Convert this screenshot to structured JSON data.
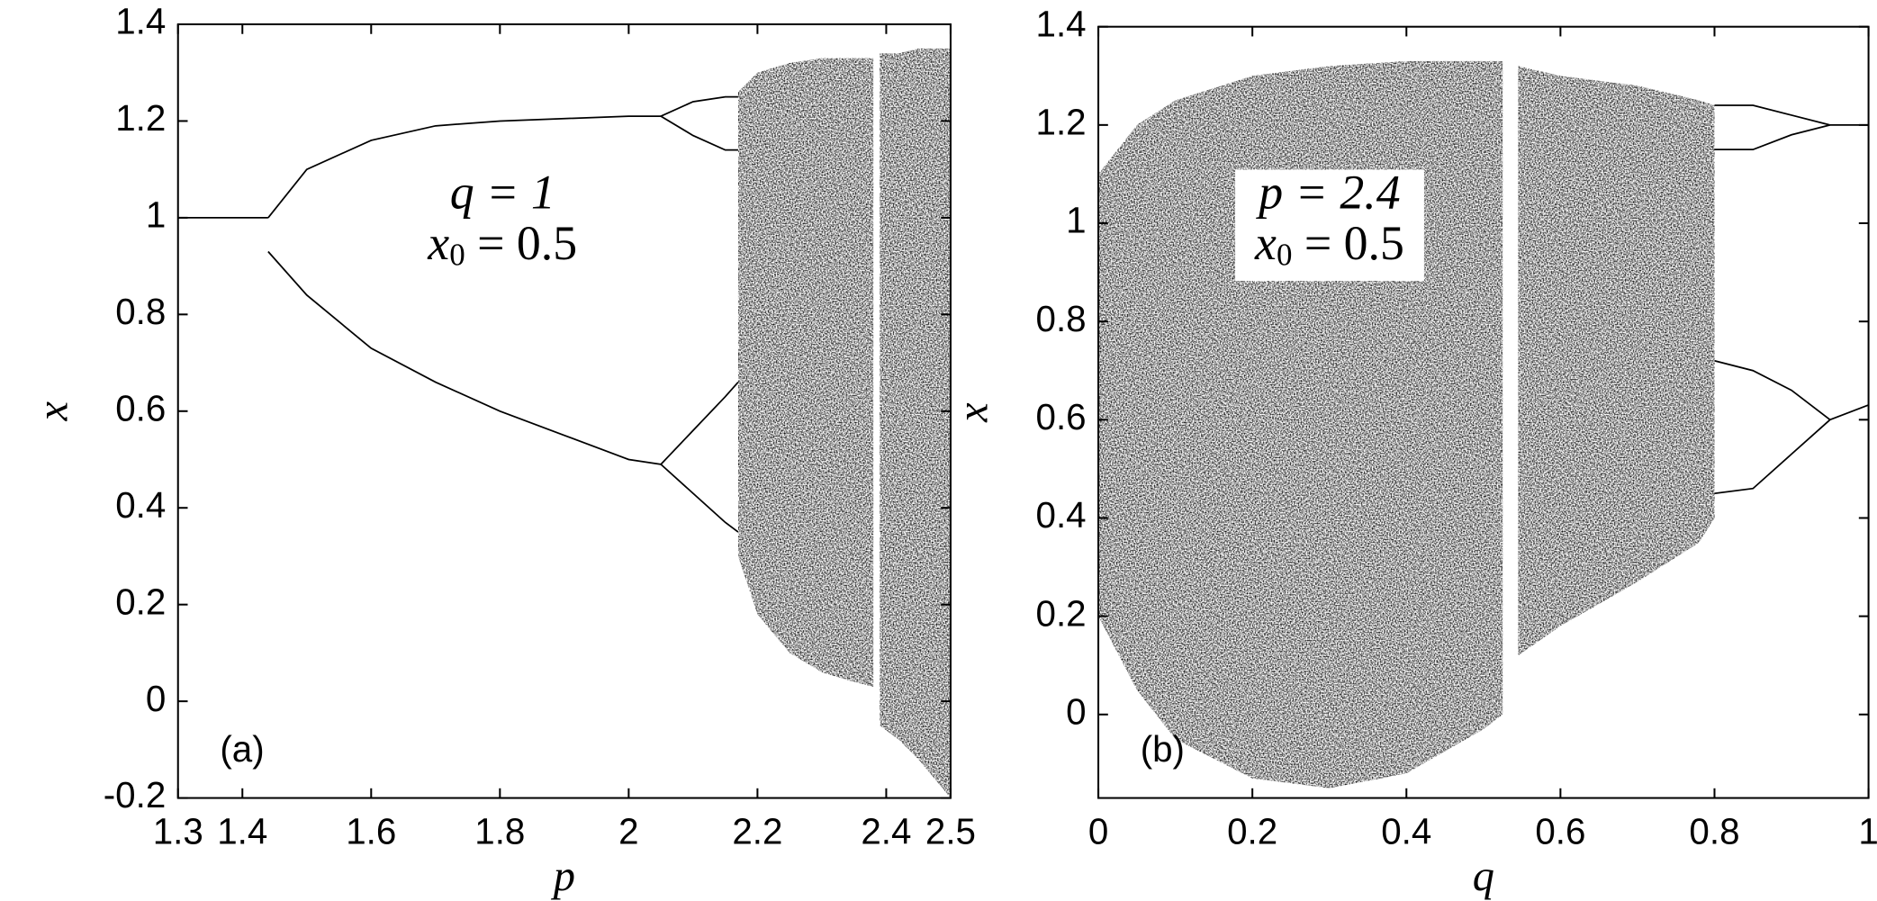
{
  "chart_data": [
    {
      "type": "bifurcation",
      "xlabel": "p",
      "ylabel": "x",
      "panel_label": "(a)",
      "color": "#000000",
      "annotation": [
        {
          "main": "q = 1"
        },
        {
          "main": "x",
          "sub": "0",
          "rest": " = 0.5"
        }
      ],
      "annotation_box": false,
      "xlim": [
        1.3,
        2.5
      ],
      "ylim": [
        -0.2,
        1.4
      ],
      "xticks": [
        1.3,
        1.4,
        1.6,
        1.8,
        2,
        2.2,
        2.4,
        2.5
      ],
      "yticks": [
        -0.2,
        0,
        0.2,
        0.4,
        0.6,
        0.8,
        1,
        1.2,
        1.4
      ],
      "series": [
        {
          "x": [
            1.3,
            1.44
          ],
          "values": [
            1,
            1
          ]
        },
        {
          "x": [
            1.44,
            1.5,
            1.6,
            1.7,
            1.8,
            1.9,
            2.0,
            2.05
          ],
          "values": [
            1.0,
            1.1,
            1.16,
            1.19,
            1.2,
            1.205,
            1.21,
            1.21
          ]
        },
        {
          "x": [
            1.44,
            1.5,
            1.6,
            1.7,
            1.8,
            1.9,
            2.0,
            2.05
          ],
          "values": [
            0.93,
            0.84,
            0.73,
            0.66,
            0.6,
            0.55,
            0.5,
            0.49
          ]
        },
        {
          "x": [
            2.05,
            2.1,
            2.15,
            2.17
          ],
          "values": [
            1.21,
            1.24,
            1.25,
            1.25
          ]
        },
        {
          "x": [
            2.05,
            2.1,
            2.15,
            2.17
          ],
          "values": [
            1.21,
            1.17,
            1.14,
            1.14
          ]
        },
        {
          "x": [
            2.05,
            2.1,
            2.15,
            2.17
          ],
          "values": [
            0.49,
            0.56,
            0.63,
            0.66
          ]
        },
        {
          "x": [
            2.05,
            2.1,
            2.15,
            2.17
          ],
          "values": [
            0.49,
            0.43,
            0.37,
            0.35
          ]
        }
      ],
      "bands": [
        {
          "x": [
            2.17,
            2.2,
            2.25,
            2.3,
            2.35,
            2.38
          ],
          "upper": [
            1.26,
            1.3,
            1.32,
            1.33,
            1.33,
            1.33
          ],
          "lower": [
            0.3,
            0.18,
            0.1,
            0.06,
            0.04,
            0.03
          ]
        },
        {
          "x": [
            2.39,
            2.42,
            2.45,
            2.5
          ],
          "upper": [
            1.34,
            1.34,
            1.35,
            1.35
          ],
          "lower": [
            -0.05,
            -0.08,
            -0.12,
            -0.2
          ]
        }
      ]
    },
    {
      "type": "bifurcation",
      "xlabel": "q",
      "ylabel": "x",
      "panel_label": "(b)",
      "color": "#000000",
      "annotation": [
        {
          "main": "p = 2.4"
        },
        {
          "main": "x",
          "sub": "0",
          "rest": " = 0.5"
        }
      ],
      "annotation_box": true,
      "xlim": [
        0,
        1
      ],
      "ylim": [
        -0.17,
        1.4
      ],
      "xticks": [
        0,
        0.2,
        0.4,
        0.6,
        0.8,
        1
      ],
      "yticks": [
        0,
        0.2,
        0.4,
        0.6,
        0.8,
        1,
        1.2,
        1.4
      ],
      "series": [
        {
          "x": [
            0.8,
            0.85,
            0.9,
            0.95
          ],
          "values": [
            1.24,
            1.24,
            1.22,
            1.2
          ]
        },
        {
          "x": [
            0.8,
            0.85,
            0.9,
            0.95
          ],
          "values": [
            1.15,
            1.15,
            1.18,
            1.2
          ]
        },
        {
          "x": [
            0.8,
            0.85,
            0.9,
            0.95
          ],
          "values": [
            0.72,
            0.7,
            0.66,
            0.6
          ]
        },
        {
          "x": [
            0.8,
            0.85,
            0.9,
            0.95
          ],
          "values": [
            0.45,
            0.46,
            0.53,
            0.6
          ]
        },
        {
          "x": [
            0.95,
            1
          ],
          "values": [
            1.2,
            1.2
          ]
        },
        {
          "x": [
            0.95,
            1
          ],
          "values": [
            0.6,
            0.63
          ]
        }
      ],
      "bands": [
        {
          "x": [
            0,
            0.05,
            0.1,
            0.2,
            0.3,
            0.4,
            0.5,
            0.525
          ],
          "upper": [
            1.1,
            1.2,
            1.25,
            1.3,
            1.32,
            1.33,
            1.33,
            1.33
          ],
          "lower": [
            0.2,
            0.05,
            -0.05,
            -0.13,
            -0.15,
            -0.12,
            -0.03,
            0.0
          ]
        },
        {
          "x": [
            0.545,
            0.6,
            0.7,
            0.78,
            0.8
          ],
          "upper": [
            1.32,
            1.3,
            1.28,
            1.25,
            1.24
          ],
          "lower": [
            0.12,
            0.18,
            0.27,
            0.35,
            0.4
          ]
        }
      ]
    }
  ]
}
